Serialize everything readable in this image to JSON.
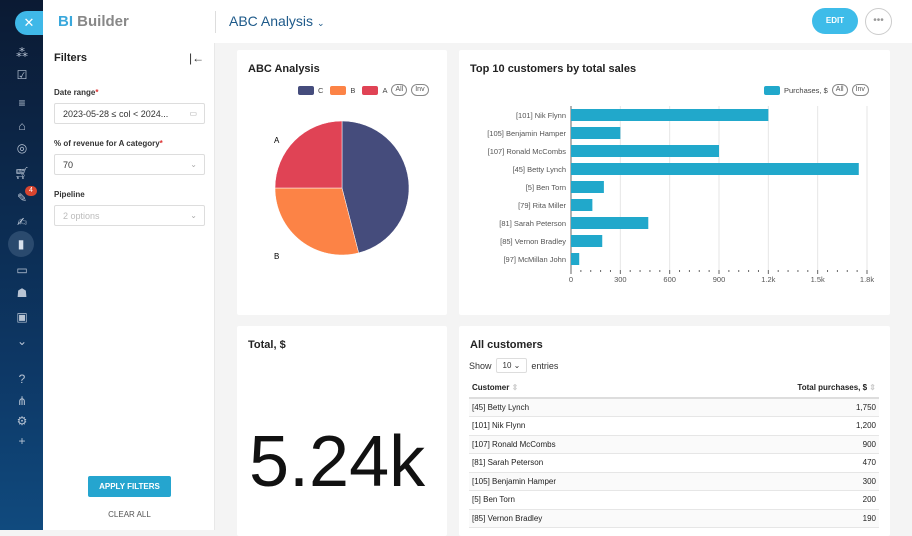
{
  "app": {
    "logo_bi": "BI",
    "logo_builder": "Builder",
    "dashboard_title": "ABC Analysis",
    "edit_label": "EDIT",
    "more_label": "•••",
    "close_label": "✕"
  },
  "rail": {
    "icons": [
      "graph-icon",
      "checkbox-icon",
      "filter-icon",
      "bank-icon",
      "target-icon",
      "cart-icon",
      "tasks-icon",
      "signature-icon",
      "chart-icon",
      "contact-card-icon",
      "robot-icon",
      "box-icon",
      "chevron-down-circle-icon",
      "help-icon",
      "hierarchy-icon",
      "gear-icon",
      "plus-icon"
    ],
    "badge": "4"
  },
  "filters": {
    "title": "Filters",
    "date_label": "Date range",
    "date_value": "2023-05-28 ≤ col < 2024...",
    "pct_label": "% of revenue for A category",
    "pct_value": "70",
    "pipeline_label": "Pipeline",
    "pipeline_placeholder": "2 options",
    "apply": "APPLY FILTERS",
    "clear": "CLEAR ALL",
    "required": "*"
  },
  "colors": {
    "C": "#454c7c",
    "B": "#fc8346",
    "A": "#e04355",
    "bar": "#21a8cb",
    "accent": "#3ebce9"
  },
  "chart_data": [
    {
      "type": "pie",
      "title": "ABC Analysis",
      "legend": [
        "C",
        "B",
        "A"
      ],
      "legend_buttons": [
        "All",
        "Inv"
      ],
      "slices": [
        {
          "name": "C",
          "value": 46
        },
        {
          "name": "B",
          "value": 29
        },
        {
          "name": "A",
          "value": 25
        }
      ],
      "labels": [
        "A",
        "B"
      ]
    },
    {
      "type": "bar",
      "orientation": "horizontal",
      "title": "Top 10 customers by total sales",
      "legend": "Purchases, $",
      "legend_buttons": [
        "All",
        "Inv"
      ],
      "categories": [
        "[101] Nik Flynn",
        "[105] Benjamin Hamper",
        "[107] Ronald McCombs",
        "[45] Betty Lynch",
        "[5] Ben Torn",
        "[79] Rita Miller",
        "[81] Sarah Peterson",
        "[85] Vernon Bradley",
        "[97] McMillan John"
      ],
      "values": [
        1200,
        300,
        900,
        1750,
        200,
        130,
        470,
        190,
        50
      ],
      "xlim": [
        0,
        1800
      ],
      "ticks": [
        "0",
        "300",
        "600",
        "900",
        "1.2k",
        "1.5k",
        "1.8k"
      ],
      "grid": true
    }
  ],
  "total": {
    "title": "Total, $",
    "value": "5.24k"
  },
  "table": {
    "title": "All customers",
    "show": "Show",
    "entries": "entries",
    "page_size": "10",
    "headers": [
      "Customer",
      "Total purchases, $"
    ],
    "rows": [
      [
        "[45] Betty Lynch",
        "1,750"
      ],
      [
        "[101] Nik Flynn",
        "1,200"
      ],
      [
        "[107] Ronald McCombs",
        "900"
      ],
      [
        "[81] Sarah Peterson",
        "470"
      ],
      [
        "[105] Benjamin Hamper",
        "300"
      ],
      [
        "[5] Ben Torn",
        "200"
      ],
      [
        "[85] Vernon Bradley",
        "190"
      ]
    ]
  }
}
